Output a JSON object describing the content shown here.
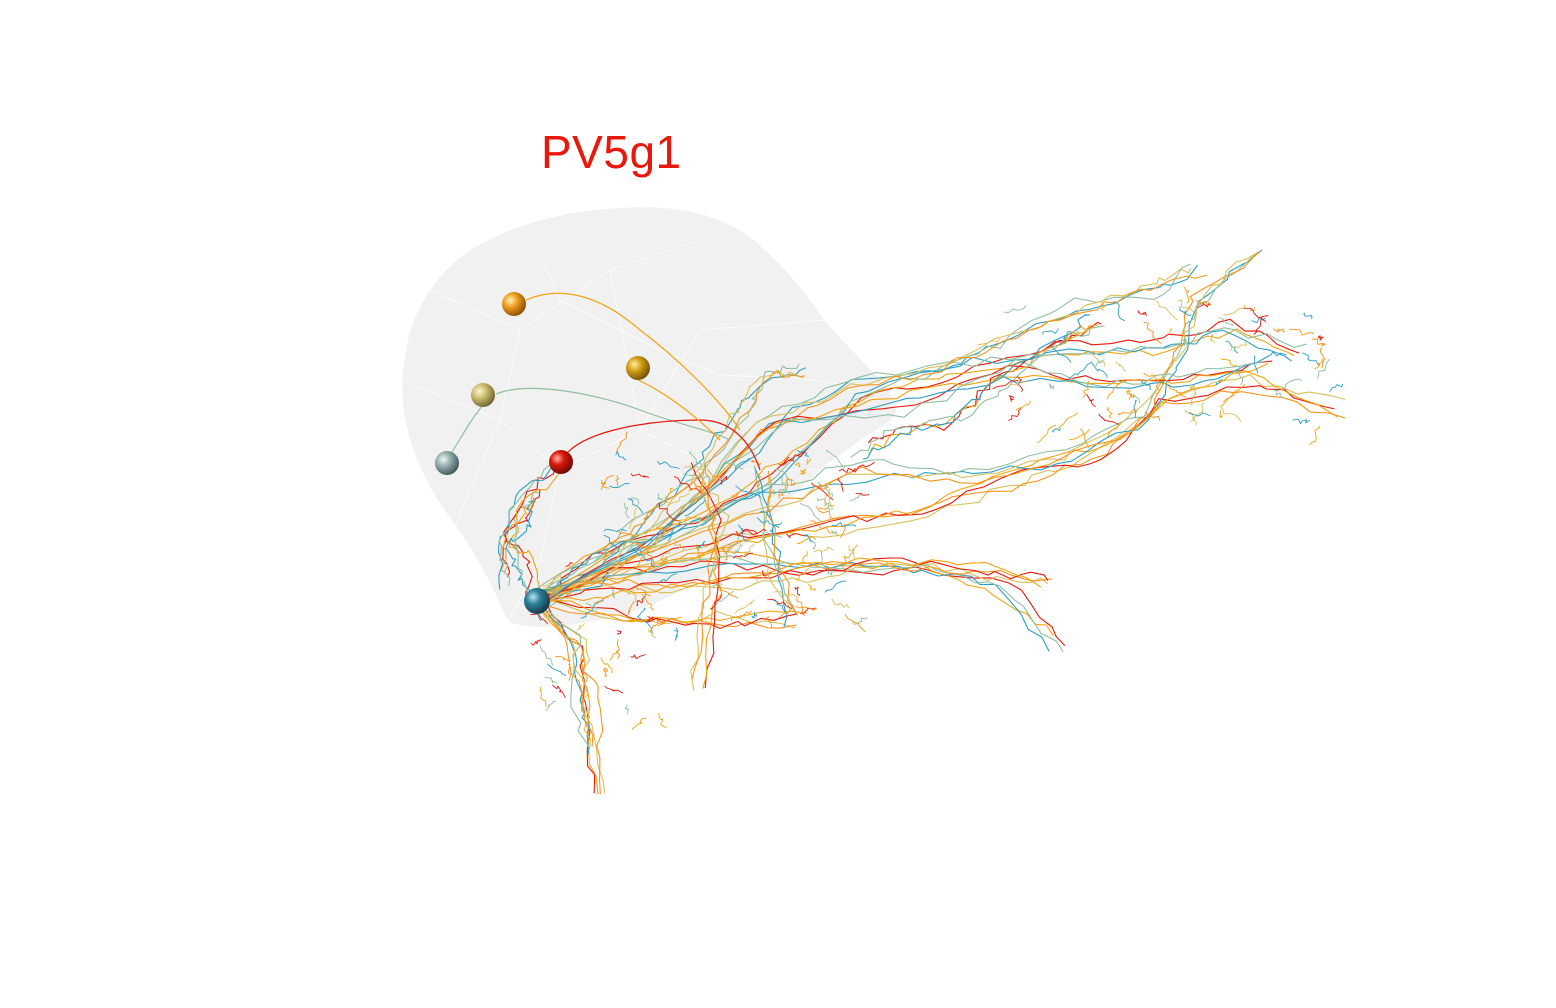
{
  "title": {
    "text": "PV5g1",
    "color": "#e8180c"
  },
  "scene": {
    "background": "#ffffff",
    "neuropil_mesh": {
      "fill": "#ececec",
      "opacity": 0.72,
      "edge_color": "#ffffff"
    },
    "neuron_colors": [
      "#e8180c",
      "#f2a30f",
      "#2a9fc4",
      "#8fbf9f",
      "#d9c05a",
      "#f7941d"
    ],
    "somata": [
      {
        "name": "soma-orange",
        "color": "#e88a1a"
      },
      {
        "name": "soma-gold",
        "color": "#d4a017"
      },
      {
        "name": "soma-khaki",
        "color": "#c8b86a"
      },
      {
        "name": "soma-grey-blue",
        "color": "#8fa8a8"
      },
      {
        "name": "soma-red",
        "color": "#d8180c"
      },
      {
        "name": "soma-teal-cluster",
        "color": "#2d7f9a"
      }
    ]
  }
}
